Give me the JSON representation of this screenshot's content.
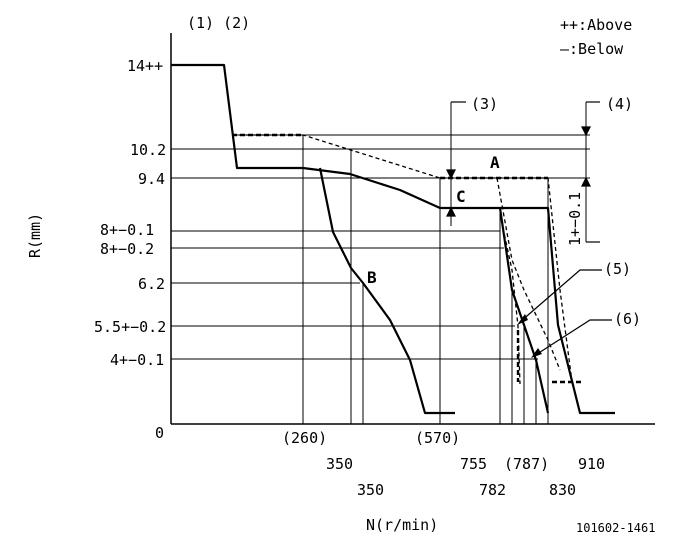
{
  "header": {
    "refs_top_left": "(1) (2)",
    "legend_above": "++:Above",
    "legend_below": "—:Below"
  },
  "axes": {
    "y_label": "R(mm)",
    "x_label": "N(r/min)",
    "origin": "0"
  },
  "y_ticks": {
    "t14": "14++",
    "t10_2": "10.2",
    "t9_4": "9.4",
    "t8_01": "8+−0.1",
    "t8_02": "8+−0.2",
    "t6_2": "6.2",
    "t5_5": "5.5+−0.2",
    "t4": "4+−0.1"
  },
  "x_ticks": {
    "x260": "(260)",
    "x350a": "350",
    "x350b": "350",
    "x570": "(570)",
    "x755": "755",
    "x782": "782",
    "x787": "(787)",
    "x830": "830",
    "x910": "910"
  },
  "callouts": {
    "c3": "(3)",
    "c4": "(4)",
    "c5": "(5)",
    "c6": "(6)",
    "A": "A",
    "B": "B",
    "C": "C",
    "tol": "1+−0.1"
  },
  "footer": {
    "drawing_no": "101602-1461"
  }
}
